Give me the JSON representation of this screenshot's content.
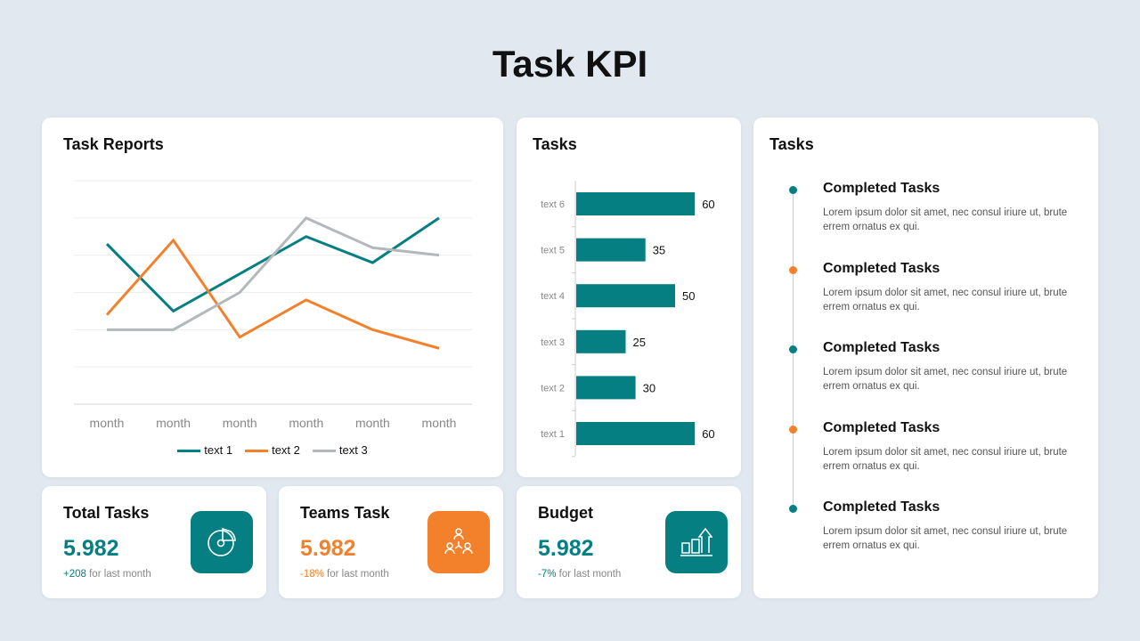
{
  "title": "Task KPI",
  "colors": {
    "teal": "#057f81",
    "orange": "#f3802b",
    "gray": "#b3b8ba"
  },
  "reports": {
    "title": "Task Reports",
    "chart_data": {
      "type": "line",
      "categories": [
        "month",
        "month",
        "month",
        "month",
        "month",
        "month"
      ],
      "ylim": [
        0,
        6
      ],
      "grid": true,
      "legend": "bottom",
      "series": [
        {
          "name": "text 1",
          "color": "#057f81",
          "values": [
            4.3,
            2.5,
            3.5,
            4.5,
            3.8,
            5.0
          ]
        },
        {
          "name": "text 2",
          "color": "#f3802b",
          "values": [
            2.4,
            4.4,
            1.8,
            2.8,
            2.0,
            1.5
          ]
        },
        {
          "name": "text 3",
          "color": "#b3b8ba",
          "values": [
            2.0,
            2.0,
            3.0,
            5.0,
            4.2,
            4.0
          ]
        }
      ]
    }
  },
  "tasks_chart": {
    "title": "Tasks",
    "chart_data": {
      "type": "bar",
      "orientation": "horizontal",
      "categories": [
        "text 6",
        "text 5",
        "text 4",
        "text 3",
        "text 2",
        "text 1"
      ],
      "values": [
        60,
        35,
        50,
        25,
        30,
        60
      ],
      "color": "#057f81"
    }
  },
  "timeline": {
    "title": "Tasks",
    "items": [
      {
        "title": "Completed Tasks",
        "text": "Lorem  ipsum dolor sit amet, nec consul iriure ut, brute errem ornatus ex qui.",
        "color": "#057f81"
      },
      {
        "title": "Completed Tasks",
        "text": "Lorem  ipsum dolor sit amet, nec consul iriure ut, brute errem ornatus ex qui.",
        "color": "#f3802b"
      },
      {
        "title": "Completed Tasks",
        "text": "Lorem  ipsum dolor sit amet, nec consul iriure ut, brute errem ornatus ex qui.",
        "color": "#057f81"
      },
      {
        "title": "Completed Tasks",
        "text": "Lorem  ipsum dolor sit amet, nec consul iriure ut, brute errem ornatus ex qui.",
        "color": "#f3802b"
      },
      {
        "title": "Completed Tasks",
        "text": "Lorem  ipsum dolor sit amet, nec consul iriure ut, brute errem ornatus ex qui.",
        "color": "#057f81"
      }
    ]
  },
  "kpis": [
    {
      "title": "Total Tasks",
      "value": "5.982",
      "change": "+208",
      "suffix": " for last month",
      "color": "#057f81",
      "icon": "pie-chart-icon"
    },
    {
      "title": "Teams Task",
      "value": "5.982",
      "change": "-18%",
      "suffix": " for last month",
      "color": "#f3802b",
      "icon": "team-icon"
    },
    {
      "title": "Budget",
      "value": "5.982",
      "change": "-7%",
      "suffix": " for last month",
      "color": "#057f81",
      "icon": "growth-chart-icon"
    }
  ]
}
